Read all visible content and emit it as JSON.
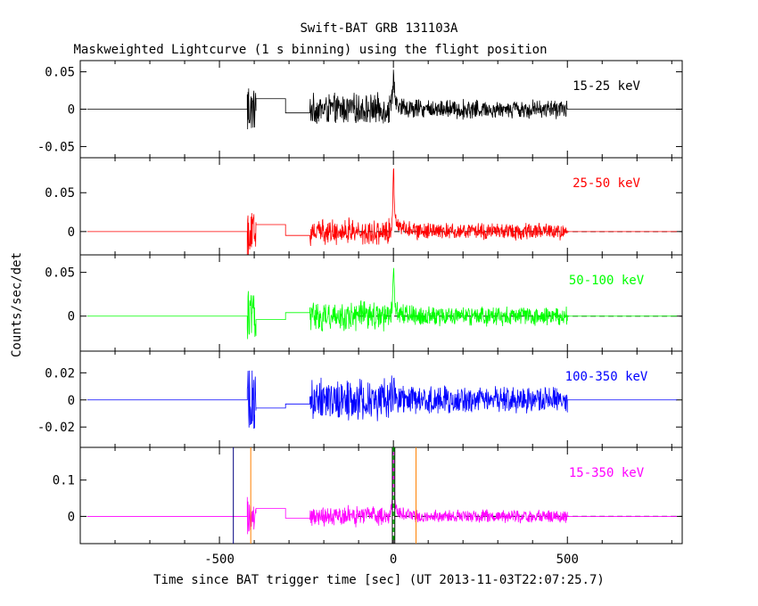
{
  "chart_data": {
    "type": "line",
    "title": "Swift-BAT GRB 131103A",
    "subtitle": "Maskweighted Lightcurve (1 s binning) using the flight position",
    "xlabel": "Time since BAT trigger time [sec] (UT 2013-11-03T22:07:25.7)",
    "ylabel": "Counts/sec/det",
    "xlim": [
      -900,
      830
    ],
    "xticks": [
      -500,
      0,
      500
    ],
    "xtick_labels": [
      "-500",
      "0",
      "500"
    ],
    "grid": false,
    "data_segments": {
      "pre_slew_start": -420,
      "pre_slew_end": -395,
      "flat_step_1": [
        -395,
        -310
      ],
      "flat_step_2": [
        -310,
        -240
      ],
      "main_start": -240,
      "main_end": 500,
      "burst_peak_t": 0
    },
    "panels": [
      {
        "name": "15-25 keV",
        "color": "#000000",
        "ylim": [
          -0.065,
          0.065
        ],
        "yticks": [
          -0.05,
          0,
          0.05
        ],
        "ytick_labels": [
          "-0.05",
          "0",
          "0.05"
        ],
        "noise_amp": 0.013,
        "peak": 0.06,
        "step_levels": [
          0.014,
          -0.005
        ],
        "dashed_baseline": false
      },
      {
        "name": "25-50 keV",
        "color": "#ff0000",
        "ylim": [
          -0.03,
          0.095
        ],
        "yticks": [
          0,
          0.05
        ],
        "ytick_labels": [
          "0",
          "0.05"
        ],
        "noise_amp": 0.011,
        "peak": 0.09,
        "step_levels": [
          0.009,
          -0.005
        ],
        "dashed_baseline": true
      },
      {
        "name": "50-100 keV",
        "color": "#00ff00",
        "ylim": [
          -0.04,
          0.07
        ],
        "yticks": [
          0,
          0.05
        ],
        "ytick_labels": [
          "0",
          "0.05"
        ],
        "noise_amp": 0.011,
        "peak": 0.065,
        "step_levels": [
          -0.004,
          0.004
        ],
        "dashed_baseline": true
      },
      {
        "name": "100-350 keV",
        "color": "#0000ff",
        "ylim": [
          -0.035,
          0.036
        ],
        "yticks": [
          -0.02,
          0,
          0.02
        ],
        "ytick_labels": [
          "-0.02",
          "0",
          "0.02"
        ],
        "noise_amp": 0.01,
        "peak": 0.012,
        "step_levels": [
          -0.006,
          -0.003
        ],
        "dashed_baseline": false
      },
      {
        "name": "15-350 keV",
        "color": "#ff00ff",
        "ylim": [
          -0.075,
          0.19
        ],
        "yticks": [
          0,
          0.1
        ],
        "ytick_labels": [
          "0",
          "0.1"
        ],
        "noise_amp": 0.018,
        "peak": 0.18,
        "step_levels": [
          0.022,
          -0.005
        ],
        "dashed_baseline": true
      }
    ],
    "markers": [
      {
        "x": -460,
        "color": "#000080",
        "style": "solid"
      },
      {
        "x": -410,
        "color": "#ff8000",
        "style": "solid"
      },
      {
        "x": 65,
        "color": "#ff8000",
        "style": "solid"
      },
      {
        "x": -3,
        "color": "#000000",
        "style": "solid"
      },
      {
        "x": 4,
        "color": "#000000",
        "style": "solid"
      },
      {
        "x": -1,
        "color": "#00aa00",
        "style": "dashed"
      },
      {
        "x": 2,
        "color": "#00aa00",
        "style": "dashed"
      }
    ]
  }
}
